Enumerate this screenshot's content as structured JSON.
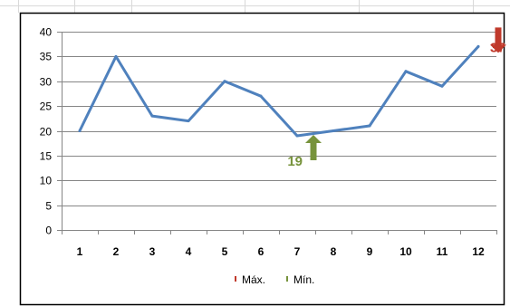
{
  "chart_data": {
    "type": "line",
    "categories": [
      "1",
      "2",
      "3",
      "4",
      "5",
      "6",
      "7",
      "8",
      "9",
      "10",
      "11",
      "12"
    ],
    "series": [
      {
        "values": [
          20,
          35,
          23,
          22,
          30,
          27,
          19,
          20,
          21,
          32,
          29,
          37
        ],
        "color": "#4f81bd"
      }
    ],
    "ylim": [
      0,
      40
    ],
    "yticks": [
      0,
      5,
      10,
      15,
      20,
      25,
      30,
      35,
      40
    ],
    "grid": true,
    "annotations": [
      {
        "name": "Máx.",
        "label": "37",
        "x": "12",
        "value": 37,
        "color": "#c0392b",
        "arrow": "down"
      },
      {
        "name": "Mín.",
        "label": "19",
        "x": "7",
        "value": 19,
        "color": "#77933c",
        "arrow": "up"
      }
    ],
    "legend": {
      "placement": "bottom",
      "entries": [
        {
          "label": "Máx.",
          "color": "#c0392b"
        },
        {
          "label": "Mín.",
          "color": "#77933c"
        }
      ]
    }
  }
}
